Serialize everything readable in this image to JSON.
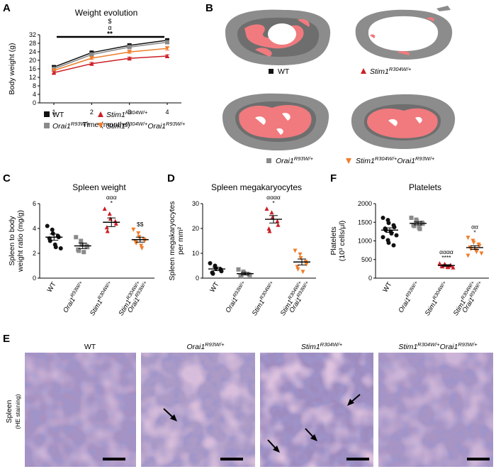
{
  "colors": {
    "wt": "#111111",
    "orai": "#8a8a8a",
    "stim": "#cc1f26",
    "double": "#f07d2a",
    "bone": "#8c8c8c",
    "vessel": "#f07a7e",
    "he_bg": "#b5a2c8",
    "he_dark": "#574d9a",
    "he_pink": "#d9a6c4"
  },
  "panels": {
    "A": "A",
    "B": "B",
    "C": "C",
    "D": "D",
    "F": "F",
    "E": "E"
  },
  "genotypes": {
    "wt": "WT",
    "orai": "Orai1",
    "orai_sup": "R93W/+",
    "stim": "Stim1",
    "stim_sup": "R304W/+"
  },
  "b_labels": {
    "wt": "WT"
  },
  "e": {
    "ylabel": "Spleen",
    "ylabel_sub": "(HE staining)"
  },
  "chart_data": [
    {
      "id": "A",
      "type": "line",
      "title": "Weight evolution",
      "xlabel": "Time (months)",
      "ylabel": "Body weight (g)",
      "x": [
        1,
        2,
        3,
        4
      ],
      "ylim": [
        0,
        32
      ],
      "yticks": [
        0,
        4,
        8,
        12,
        16,
        20,
        24,
        28,
        32
      ],
      "annotation": [
        "$",
        "α",
        "**"
      ],
      "series": [
        {
          "key": "wt",
          "name": "WT",
          "values": [
            16.8,
            23.6,
            27.0,
            29.4
          ],
          "sem": [
            0.6,
            0.5,
            0.5,
            0.5
          ],
          "marker": "square"
        },
        {
          "key": "orai",
          "name": "Orai1 R93W/+",
          "values": [
            16.0,
            22.7,
            26.2,
            28.5
          ],
          "sem": [
            0.5,
            0.5,
            0.5,
            0.5
          ],
          "marker": "square"
        },
        {
          "key": "double",
          "name": "Stim1 R304W/+ Orai1 R93W/+",
          "values": [
            15.2,
            21.0,
            23.9,
            25.6
          ],
          "sem": [
            0.5,
            0.6,
            0.6,
            0.8
          ],
          "marker": "tri-down"
        },
        {
          "key": "stim",
          "name": "Stim1 R304W/+",
          "values": [
            14.2,
            18.4,
            20.9,
            22.0
          ],
          "sem": [
            0.5,
            0.6,
            0.6,
            0.6
          ],
          "marker": "tri-up"
        }
      ]
    },
    {
      "id": "C",
      "type": "scatter",
      "title": "Spleen weight",
      "ylabel": [
        "Spleen to body",
        "weight ratio (mg/g)"
      ],
      "ylim": [
        0,
        6
      ],
      "yticks": [
        0,
        2,
        4,
        6
      ],
      "groups": [
        {
          "key": "wt",
          "mean": 3.3,
          "sem": 0.25,
          "marker": "circle",
          "points": [
            4.2,
            3.9,
            3.6,
            3.4,
            3.3,
            3.2,
            3.0,
            2.7,
            2.5,
            2.4
          ],
          "sig": []
        },
        {
          "key": "orai",
          "mean": 2.6,
          "sem": 0.22,
          "marker": "square",
          "points": [
            3.3,
            3.0,
            2.7,
            2.6,
            2.5,
            2.3,
            2.2,
            2.1
          ],
          "sig": []
        },
        {
          "key": "stim",
          "mean": 4.5,
          "sem": 0.35,
          "marker": "tri-up",
          "points": [
            5.6,
            5.2,
            4.8,
            4.6,
            4.4,
            4.1,
            3.8
          ],
          "sig": [
            "ααα",
            "*"
          ]
        },
        {
          "key": "double",
          "mean": 3.1,
          "sem": 0.2,
          "marker": "tri-down",
          "points": [
            3.9,
            3.6,
            3.3,
            3.1,
            3.0,
            2.9,
            2.8,
            2.6,
            2.4
          ],
          "sig": [
            "$$"
          ]
        }
      ]
    },
    {
      "id": "D",
      "type": "scatter",
      "title": "Spleen megakaryocytes",
      "ylabel": [
        "Spleen megakaryocytes",
        "per mm²"
      ],
      "ylim": [
        0,
        30
      ],
      "yticks": [
        0,
        10,
        20,
        30
      ],
      "groups": [
        {
          "key": "wt",
          "mean": 3.7,
          "sem": 0.7,
          "marker": "circle",
          "points": [
            6.0,
            5.0,
            4.0,
            3.5,
            2.8,
            2.2,
            1.8
          ],
          "sig": []
        },
        {
          "key": "orai",
          "mean": 1.8,
          "sem": 0.5,
          "marker": "square",
          "points": [
            3.5,
            2.6,
            2.0,
            1.5,
            1.2,
            1.0,
            0.8
          ],
          "sig": []
        },
        {
          "key": "stim",
          "mean": 23.7,
          "sem": 1.5,
          "marker": "tri-up",
          "points": [
            28.0,
            26.5,
            24.5,
            23.0,
            21.5,
            20.0,
            19.0
          ],
          "sig": [
            "αααα",
            "*"
          ]
        },
        {
          "key": "double",
          "mean": 6.5,
          "sem": 1.2,
          "marker": "tri-down",
          "points": [
            11.0,
            9.5,
            8.0,
            6.5,
            5.5,
            4.5,
            3.5,
            2.5
          ],
          "sig": []
        }
      ]
    },
    {
      "id": "F",
      "type": "scatter",
      "title": "Platelets",
      "ylabel": [
        "Platelets",
        "(10³ cells/μl)"
      ],
      "ylim": [
        0,
        2000
      ],
      "yticks": [
        0,
        500,
        1000,
        1500,
        2000
      ],
      "groups": [
        {
          "key": "wt",
          "mean": 1290,
          "sem": 60,
          "marker": "circle",
          "points": [
            1620,
            1560,
            1480,
            1420,
            1370,
            1330,
            1290,
            1250,
            1200,
            1150,
            1100,
            1020,
            950,
            880
          ],
          "sig": []
        },
        {
          "key": "orai",
          "mean": 1470,
          "sem": 40,
          "marker": "square",
          "points": [
            1620,
            1570,
            1520,
            1490,
            1460,
            1430,
            1400,
            1360,
            1320
          ],
          "sig": []
        },
        {
          "key": "stim",
          "mean": 340,
          "sem": 20,
          "marker": "tri-up",
          "points": [
            400,
            380,
            360,
            350,
            340,
            330,
            320,
            310,
            300,
            290
          ],
          "sig": [
            "αααα",
            "****"
          ]
        },
        {
          "key": "double",
          "mean": 820,
          "sem": 50,
          "marker": "tri-down",
          "points": [
            1080,
            1000,
            950,
            900,
            860,
            820,
            780,
            740,
            700,
            660,
            600
          ],
          "sig": [
            "αα",
            "*"
          ]
        }
      ]
    }
  ]
}
